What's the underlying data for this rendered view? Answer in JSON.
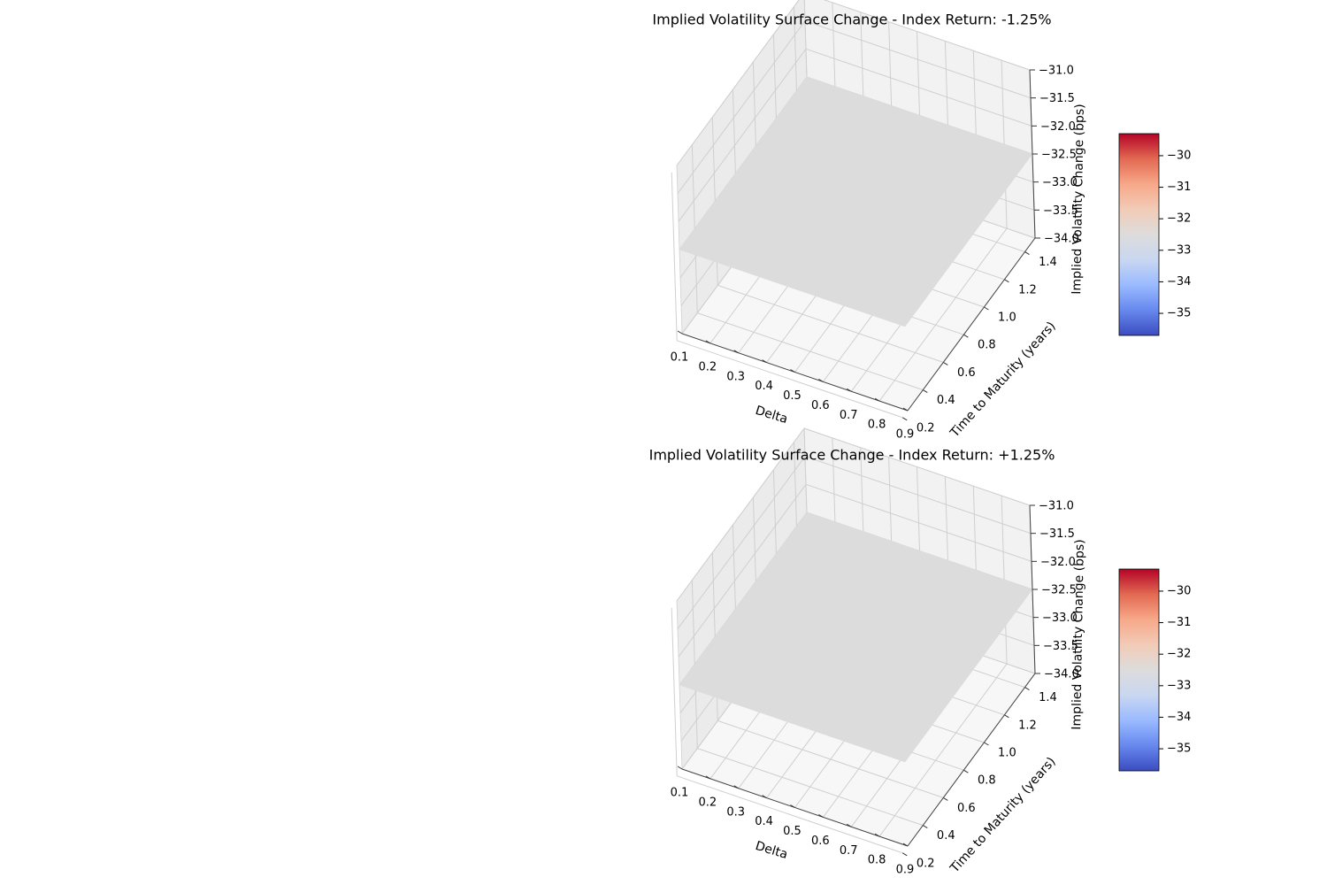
{
  "chart_data": [
    {
      "type": "surface",
      "title": "Implied Volatility Surface Change - Index Return: -1.25%",
      "xlabel": "Delta",
      "ylabel": "Time to Maturity (years)",
      "zlabel": "Implied Volatility Change (bps)",
      "x_ticks": [
        "0.1",
        "0.2",
        "0.3",
        "0.4",
        "0.5",
        "0.6",
        "0.7",
        "0.8",
        "0.9"
      ],
      "y_ticks": [
        "0.2",
        "0.4",
        "0.6",
        "0.8",
        "1.0",
        "1.2",
        "1.4"
      ],
      "z_ticks": [
        "−34.0",
        "−33.5",
        "−33.0",
        "−32.5",
        "−32.0",
        "−31.5",
        "−31.0"
      ],
      "x_range": [
        0.1,
        0.9
      ],
      "y_range": [
        0.25,
        1.5
      ],
      "z_range": [
        -34.0,
        -31.0
      ],
      "surface_value": -32.5,
      "grid": true,
      "colorbar": {
        "colormap": "coolwarm",
        "range": [
          -35.7,
          -29.3
        ],
        "ticks": [
          "−35",
          "−34",
          "−33",
          "−32",
          "−31",
          "−30"
        ],
        "colors": [
          "#3b4cc0",
          "#6788ee",
          "#9abbff",
          "#c9d7f0",
          "#dddcdc",
          "#f2cbb7",
          "#f7a889",
          "#e26952",
          "#b40426"
        ]
      }
    },
    {
      "type": "surface",
      "title": "Implied Volatility Surface Change - Index Return: +1.25%",
      "xlabel": "Delta",
      "ylabel": "Time to Maturity (years)",
      "zlabel": "Implied Volatility Change (bps)",
      "x_ticks": [
        "0.1",
        "0.2",
        "0.3",
        "0.4",
        "0.5",
        "0.6",
        "0.7",
        "0.8",
        "0.9"
      ],
      "y_ticks": [
        "0.2",
        "0.4",
        "0.6",
        "0.8",
        "1.0",
        "1.2",
        "1.4"
      ],
      "z_ticks": [
        "−34.0",
        "−33.5",
        "−33.0",
        "−32.5",
        "−32.0",
        "−31.5",
        "−31.0"
      ],
      "x_range": [
        0.1,
        0.9
      ],
      "y_range": [
        0.25,
        1.5
      ],
      "z_range": [
        -34.0,
        -31.0
      ],
      "surface_value": -32.5,
      "grid": true,
      "colorbar": {
        "colormap": "coolwarm",
        "range": [
          -35.7,
          -29.3
        ],
        "ticks": [
          "−35",
          "−34",
          "−33",
          "−32",
          "−31",
          "−30"
        ],
        "colors": [
          "#3b4cc0",
          "#6788ee",
          "#9abbff",
          "#c9d7f0",
          "#dddcdc",
          "#f2cbb7",
          "#f7a889",
          "#e26952",
          "#b40426"
        ]
      }
    }
  ]
}
